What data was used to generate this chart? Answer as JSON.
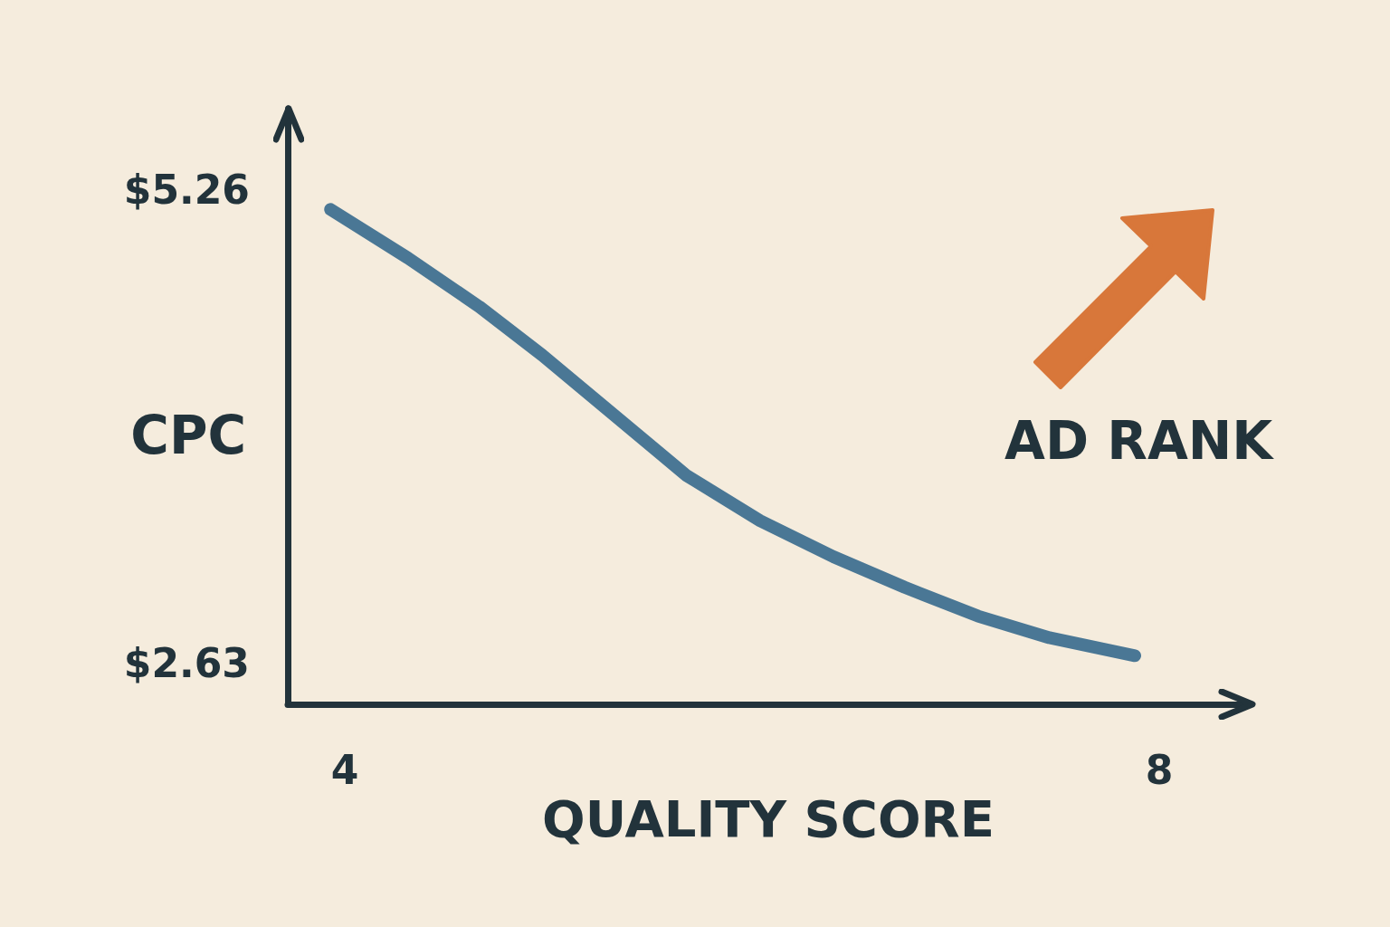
{
  "chart_data": {
    "type": "line",
    "xlabel": "QUALITY SCORE",
    "ylabel": "CPC",
    "x": [
      3.93,
      4.31,
      4.66,
      4.97,
      5.33,
      5.68,
      6.04,
      6.4,
      6.75,
      7.11,
      7.46,
      7.88
    ],
    "series": [
      {
        "color": "#4a7795",
        "values": [
          5.15,
          4.88,
          4.61,
          4.34,
          4.0,
          3.67,
          3.42,
          3.22,
          3.05,
          2.89,
          2.77,
          2.67
        ]
      }
    ],
    "xlim": [
      3.72,
      8.44
    ],
    "ylim": [
      2.4,
      5.71
    ],
    "xticks": [
      4,
      8
    ],
    "yticks": [
      {
        "value": 2.63,
        "label": "$2.63"
      },
      {
        "value": 5.26,
        "label": "$5.26"
      }
    ],
    "line_style": "solid",
    "annotations": [
      "AD RANK"
    ]
  }
}
